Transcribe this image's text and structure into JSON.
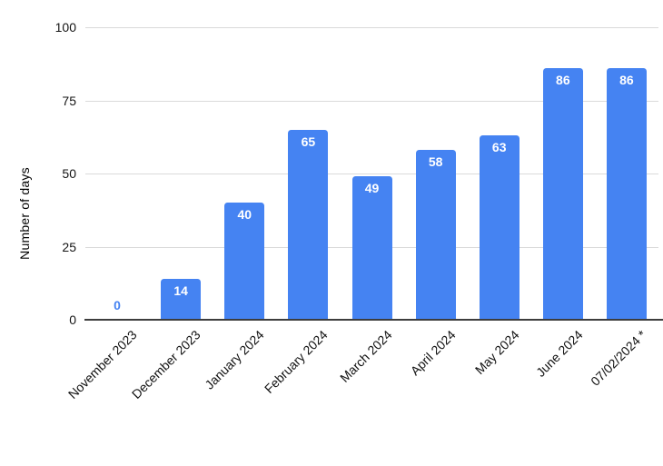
{
  "chart_data": {
    "type": "bar",
    "categories": [
      "November 2023",
      "December 2023",
      "January 2024",
      "February 2024",
      "March 2024",
      "April 2024",
      "May 2024",
      "June 2024",
      "07/02/2024 *"
    ],
    "values": [
      0,
      14,
      40,
      65,
      49,
      58,
      63,
      86,
      86
    ],
    "title": "",
    "xlabel": "",
    "ylabel": "Number of days",
    "ylim": [
      0,
      100
    ],
    "yticks": [
      0,
      25,
      50,
      75,
      100
    ],
    "grid": true,
    "legend": "none",
    "bar_color": "#4583F2",
    "value_label_color": "#FFFFFF",
    "zero_value_label_color": "#4583F2",
    "gridline_color": "#DADADA",
    "baseline_color": "#3D3D3D",
    "background_color": "#FFFFFF"
  }
}
